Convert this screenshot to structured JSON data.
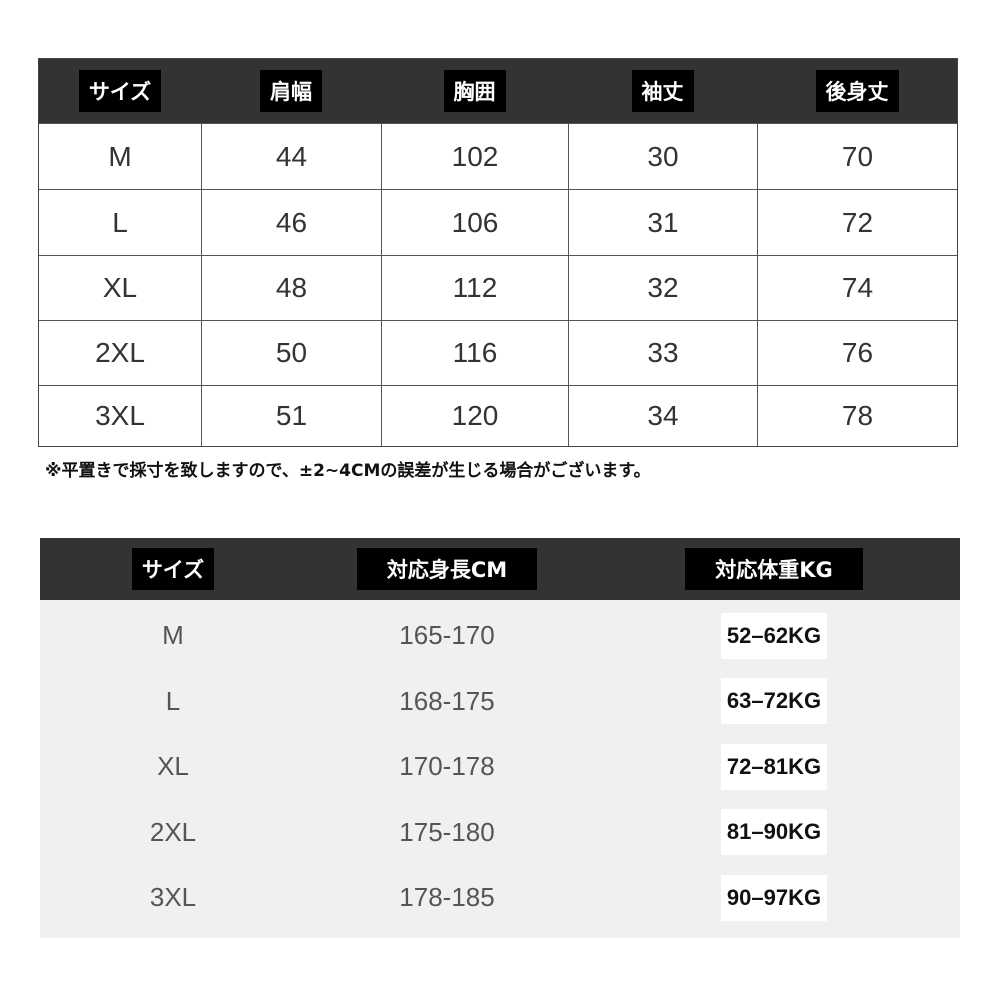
{
  "table1": {
    "headers": [
      "サイズ",
      "肩幅",
      "胸囲",
      "袖丈",
      "後身丈"
    ],
    "rows": [
      [
        "M",
        "44",
        "102",
        "30",
        "70"
      ],
      [
        "L",
        "46",
        "106",
        "31",
        "72"
      ],
      [
        "XL",
        "48",
        "112",
        "32",
        "74"
      ],
      [
        "2XL",
        "50",
        "116",
        "33",
        "76"
      ],
      [
        "3XL",
        "51",
        "120",
        "34",
        "78"
      ]
    ]
  },
  "note": "※平置きで採寸を致しますので、±2~4CMの誤差が生じる場合がございます。",
  "table2": {
    "headers": [
      "サイズ",
      "対応身長CM",
      "対応体重KG"
    ],
    "rows": [
      [
        "M",
        "165-170",
        "52–62KG"
      ],
      [
        "L",
        "168-175",
        "63–72KG"
      ],
      [
        "XL",
        "170-178",
        "72–81KG"
      ],
      [
        "2XL",
        "175-180",
        "81–90KG"
      ],
      [
        "3XL",
        "178-185",
        "90–97KG"
      ]
    ]
  },
  "colors": {
    "header_bg": "#333333",
    "label_bg": "#000000",
    "table2_bg": "#f0f0f0"
  }
}
